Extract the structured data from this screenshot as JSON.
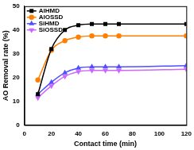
{
  "chart_data": {
    "type": "line",
    "x_label": "Contact time (min)",
    "y_label": "AO Removal rate (%)",
    "x": [
      10,
      20,
      30,
      40,
      50,
      60,
      70,
      120
    ],
    "series": [
      {
        "name": "AlHMD",
        "color": "#000000",
        "marker": "square",
        "values": [
          13,
          32,
          40,
          42,
          42.5,
          42.5,
          42.5,
          42.5
        ]
      },
      {
        "name": "AlOSSD",
        "color": "#ff8000",
        "marker": "circle",
        "values": [
          19,
          31.5,
          35.5,
          37,
          37.5,
          37.5,
          37.5,
          37.5
        ]
      },
      {
        "name": "SiHMD",
        "color": "#5050ff",
        "marker": "triangle-up",
        "values": [
          13,
          18,
          22,
          24,
          24.5,
          24.5,
          24.5,
          25
        ]
      },
      {
        "name": "SiOSSD",
        "color": "#cc66ff",
        "marker": "triangle-down",
        "values": [
          11.5,
          16.5,
          20.5,
          22.5,
          23,
          23,
          23,
          23.5
        ]
      }
    ],
    "xlim": [
      0,
      120
    ],
    "xticks": [
      0,
      20,
      40,
      60,
      80,
      100,
      120
    ],
    "ylim": [
      0,
      50
    ],
    "yticks": [
      0,
      10,
      20,
      30,
      40,
      50
    ],
    "grid": false,
    "legend": "upper left"
  }
}
